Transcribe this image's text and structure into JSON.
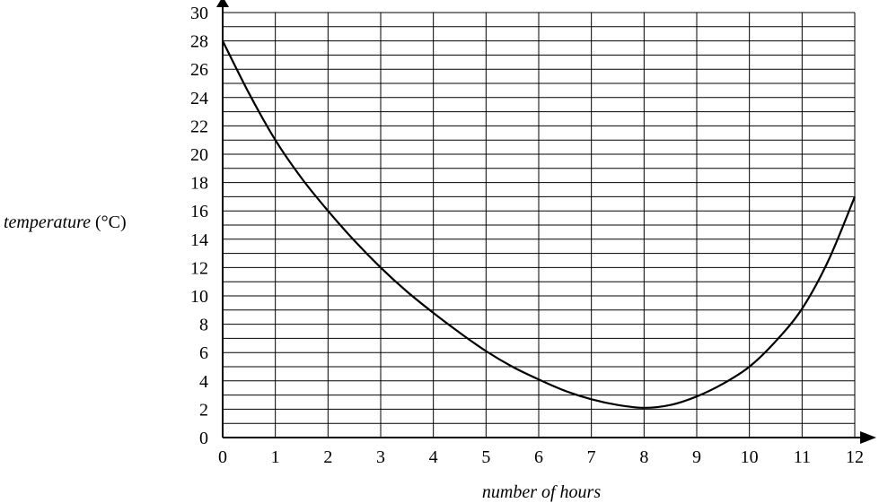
{
  "chart_data": {
    "type": "line",
    "title": "",
    "xlabel": "number of hours",
    "ylabel_italic": "temperature",
    "ylabel_unit": " (°C)",
    "xlim": [
      0,
      12
    ],
    "ylim": [
      0,
      30
    ],
    "x_ticks": [
      0,
      1,
      2,
      3,
      4,
      5,
      6,
      7,
      8,
      9,
      10,
      11,
      12
    ],
    "y_ticks": [
      0,
      2,
      4,
      6,
      8,
      10,
      12,
      14,
      16,
      18,
      20,
      22,
      24,
      26,
      28,
      30
    ],
    "grid": true,
    "series": [
      {
        "x": [
          0,
          0.5,
          1,
          1.5,
          2,
          2.5,
          3,
          3.5,
          4,
          4.5,
          5,
          5.5,
          6,
          6.5,
          7,
          7.5,
          8,
          8.5,
          9,
          9.5,
          10,
          10.5,
          11,
          11.5,
          12
        ],
        "y": [
          28,
          24.3,
          21,
          18.3,
          16,
          13.9,
          12,
          10.3,
          8.8,
          7.4,
          6.1,
          5,
          4.1,
          3.3,
          2.7,
          2.3,
          2.1,
          2.3,
          2.9,
          3.8,
          5,
          6.8,
          9.1,
          12.5,
          17
        ]
      }
    ]
  }
}
